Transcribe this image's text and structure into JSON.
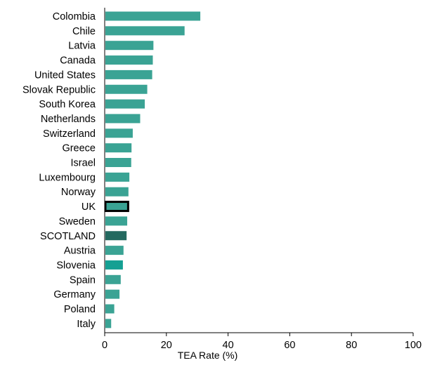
{
  "chart_data": {
    "type": "bar",
    "orientation": "horizontal",
    "categories": [
      "Colombia",
      "Chile",
      "Latvia",
      "Canada",
      "United States",
      "Slovak Republic",
      "South Korea",
      "Netherlands",
      "Switzerland",
      "Greece",
      "Israel",
      "Luxembourg",
      "Norway",
      "UK",
      "Sweden",
      "SCOTLAND",
      "Austria",
      "Slovenia",
      "Spain",
      "Germany",
      "Poland",
      "Italy"
    ],
    "values": [
      31.0,
      25.9,
      15.8,
      15.6,
      15.4,
      13.8,
      13.0,
      11.5,
      9.1,
      8.7,
      8.6,
      8.0,
      7.7,
      7.6,
      7.3,
      7.1,
      6.1,
      5.9,
      5.2,
      4.8,
      3.1,
      2.1
    ],
    "highlight": {
      "UK": "outlined",
      "SCOTLAND": "dark",
      "Slovenia": "accent"
    },
    "title": "",
    "xlabel": "TEA Rate (%)",
    "ylabel": "",
    "xlim": [
      0,
      100
    ],
    "xticks": [
      0,
      20,
      40,
      60,
      80,
      100
    ],
    "grid": false,
    "colors": {
      "default": "#3aa394",
      "dark": "#23695f",
      "accent": "#14a093",
      "outline": "#000000"
    }
  }
}
